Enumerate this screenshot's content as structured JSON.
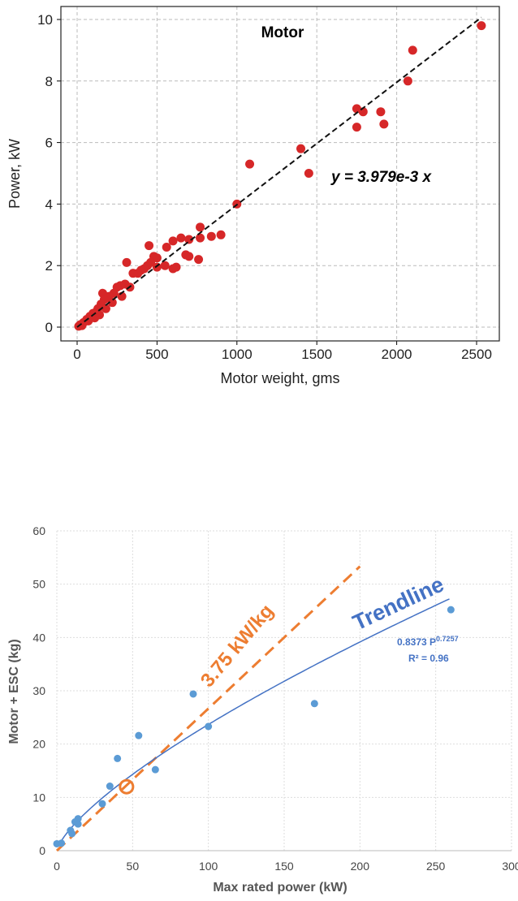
{
  "chart_data": [
    {
      "type": "scatter",
      "title": "Motor",
      "xlabel": "Motor weight, gms",
      "ylabel": "Power, kW",
      "xlim": [
        -100,
        2600
      ],
      "ylim": [
        -0.4,
        10.2
      ],
      "xticks": [
        0,
        500,
        1000,
        1500,
        2000,
        2500
      ],
      "yticks": [
        0,
        2,
        4,
        6,
        8,
        10
      ],
      "grid": true,
      "point_color": "#d62728",
      "fit": {
        "label": "y  = 3.979e-3 x",
        "slope": 0.003979,
        "style": "black dashed"
      },
      "points": [
        [
          2530,
          9.8
        ],
        [
          2100,
          9.0
        ],
        [
          2070,
          8.0
        ],
        [
          1750,
          7.1
        ],
        [
          1790,
          7.0
        ],
        [
          1900,
          7.0
        ],
        [
          1750,
          6.5
        ],
        [
          1920,
          6.6
        ],
        [
          1400,
          5.8
        ],
        [
          1450,
          5.0
        ],
        [
          1080,
          5.3
        ],
        [
          1000,
          4.0
        ],
        [
          900,
          3.0
        ],
        [
          840,
          2.95
        ],
        [
          770,
          3.25
        ],
        [
          770,
          2.9
        ],
        [
          700,
          2.85
        ],
        [
          650,
          2.9
        ],
        [
          600,
          2.8
        ],
        [
          560,
          2.6
        ],
        [
          680,
          2.35
        ],
        [
          760,
          2.2
        ],
        [
          620,
          1.95
        ],
        [
          600,
          1.9
        ],
        [
          500,
          2.25
        ],
        [
          480,
          2.3
        ],
        [
          450,
          2.65
        ],
        [
          440,
          2.0
        ],
        [
          460,
          2.1
        ],
        [
          420,
          1.9
        ],
        [
          400,
          1.85
        ],
        [
          380,
          1.75
        ],
        [
          350,
          1.75
        ],
        [
          310,
          2.1
        ],
        [
          300,
          1.4
        ],
        [
          330,
          1.3
        ],
        [
          270,
          1.35
        ],
        [
          250,
          1.3
        ],
        [
          230,
          1.1
        ],
        [
          200,
          1.0
        ],
        [
          160,
          1.1
        ],
        [
          170,
          0.9
        ],
        [
          150,
          0.75
        ],
        [
          130,
          0.6
        ],
        [
          120,
          0.5
        ],
        [
          100,
          0.45
        ],
        [
          80,
          0.35
        ],
        [
          60,
          0.25
        ],
        [
          40,
          0.15
        ],
        [
          20,
          0.08
        ],
        [
          10,
          0.03
        ],
        [
          30,
          0.05
        ],
        [
          70,
          0.2
        ],
        [
          110,
          0.3
        ],
        [
          140,
          0.4
        ],
        [
          180,
          0.6
        ],
        [
          220,
          0.8
        ],
        [
          280,
          1.0
        ],
        [
          500,
          1.95
        ],
        [
          550,
          2.0
        ],
        [
          700,
          2.3
        ]
      ]
    },
    {
      "type": "scatter",
      "xlabel": "Max rated power (kW)",
      "ylabel": "Motor + ESC (kg)",
      "xlim": [
        0,
        300
      ],
      "ylim": [
        0,
        60
      ],
      "xticks": [
        0,
        50,
        100,
        150,
        200,
        250,
        300
      ],
      "yticks": [
        0,
        10,
        20,
        30,
        40,
        50,
        60
      ],
      "grid": true,
      "point_color": "#5b9bd5",
      "points": [
        [
          0,
          1.3
        ],
        [
          3,
          1.4
        ],
        [
          9,
          3.8
        ],
        [
          10,
          3.2
        ],
        [
          12,
          5.4
        ],
        [
          14,
          5.0
        ],
        [
          14,
          6.0
        ],
        [
          30,
          8.8
        ],
        [
          35,
          12.1
        ],
        [
          40,
          17.3
        ],
        [
          54,
          21.6
        ],
        [
          65,
          15.2
        ],
        [
          90,
          29.4
        ],
        [
          100,
          23.3
        ],
        [
          170,
          27.6
        ],
        [
          260,
          45.2
        ]
      ],
      "highlight_point": [
        46,
        12
      ],
      "highlight_color": "#ed7d31",
      "ratio_line": {
        "label": "3.75 kW/kg",
        "kw_per_kg": 3.75,
        "x_end": 200,
        "color": "#ed7d31"
      },
      "trendline": {
        "label": "Trendline",
        "coef": 0.8373,
        "exp": 0.7257,
        "equation_base": "0.8373 P",
        "equation_exp": "0.7257",
        "r2_label": "R² = 0.96",
        "color": "#4472c4"
      }
    }
  ]
}
